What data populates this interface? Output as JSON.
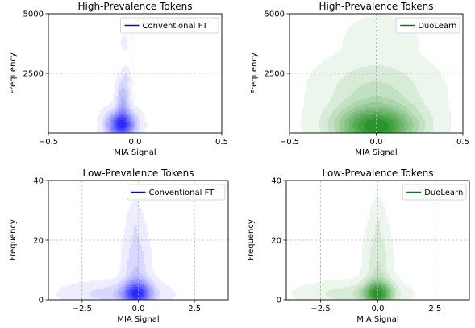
{
  "chart_data": [
    {
      "type": "area",
      "kind": "kde-density",
      "title": "High-Prevalence Tokens",
      "xlabel": "MIA Signal",
      "ylabel": "Frequency",
      "xlim": [
        -0.5,
        0.5
      ],
      "ylim": [
        0,
        5000
      ],
      "xticks": [
        -0.5,
        0.0,
        0.5
      ],
      "xtick_labels": [
        "−0.5",
        "0.0",
        "0.5"
      ],
      "yticks": [
        2500,
        5000
      ],
      "ytick_labels": [
        "2500",
        "5000"
      ],
      "grid": true,
      "legend": "top-right",
      "series": [
        {
          "name": "Conventional FT",
          "color": "#0000ff"
        }
      ],
      "density_blobs": [
        {
          "x": -0.08,
          "y": 350,
          "sx": 0.055,
          "sy": 380,
          "w": 1.0
        },
        {
          "x": -0.07,
          "y": 1400,
          "sx": 0.025,
          "sy": 550,
          "w": 0.35
        },
        {
          "x": -0.05,
          "y": 2350,
          "sx": 0.015,
          "sy": 250,
          "w": 0.12
        },
        {
          "x": -0.06,
          "y": 3800,
          "sx": 0.02,
          "sy": 350,
          "w": 0.05
        }
      ]
    },
    {
      "type": "area",
      "kind": "kde-density",
      "title": "High-Prevalence Tokens",
      "xlabel": "MIA Signal",
      "ylabel": "Frequency",
      "xlim": [
        -0.5,
        0.5
      ],
      "ylim": [
        0,
        5000
      ],
      "xticks": [
        -0.5,
        0.0,
        0.5
      ],
      "xtick_labels": [
        "−0.5",
        "0.0",
        "0.5"
      ],
      "yticks": [
        2500,
        5000
      ],
      "ytick_labels": [
        "2500",
        "5000"
      ],
      "grid": true,
      "legend": "top-right",
      "series": [
        {
          "name": "DuoLearn",
          "color": "#008000"
        }
      ],
      "density_blobs": [
        {
          "x": 0.0,
          "y": 250,
          "sx": 0.16,
          "sy": 600,
          "w": 1.0
        },
        {
          "x": 0.0,
          "y": 1800,
          "sx": 0.2,
          "sy": 900,
          "w": 0.25
        },
        {
          "x": 0.03,
          "y": 4100,
          "sx": 0.12,
          "sy": 500,
          "w": 0.12
        }
      ]
    },
    {
      "type": "area",
      "kind": "kde-density",
      "title": "Low-Prevalence Tokens",
      "xlabel": "MIA Signal",
      "ylabel": "Frequency",
      "xlim": [
        -4.0,
        4.0
      ],
      "ylim": [
        0,
        40
      ],
      "xticks": [
        -2.5,
        0.0,
        2.5
      ],
      "xtick_labels": [
        "−2.5",
        "0.0",
        "2.5"
      ],
      "yticks": [
        0,
        20,
        40
      ],
      "ytick_labels": [
        "0",
        "20",
        "40"
      ],
      "grid": true,
      "legend": "top-right",
      "series": [
        {
          "name": "Conventional FT",
          "color": "#0000ff"
        }
      ],
      "density_blobs": [
        {
          "x": -0.05,
          "y": 2,
          "sx": 0.45,
          "sy": 3,
          "w": 1.0
        },
        {
          "x": -0.1,
          "y": 11,
          "sx": 0.35,
          "sy": 9,
          "w": 0.3
        },
        {
          "x": -1.0,
          "y": 2,
          "sx": 1.4,
          "sy": 2.5,
          "w": 0.25
        },
        {
          "x": -0.15,
          "y": 27,
          "sx": 0.18,
          "sy": 4,
          "w": 0.1
        }
      ]
    },
    {
      "type": "area",
      "kind": "kde-density",
      "title": "Low-Prevalence Tokens",
      "xlabel": "MIA Signal",
      "ylabel": "Frequency",
      "xlim": [
        -4.0,
        4.0
      ],
      "ylim": [
        0,
        40
      ],
      "xticks": [
        -2.5,
        0.0,
        2.5
      ],
      "xtick_labels": [
        "−2.5",
        "0.0",
        "2.5"
      ],
      "yticks": [
        0,
        20,
        40
      ],
      "ytick_labels": [
        "0",
        "20",
        "40"
      ],
      "grid": true,
      "legend": "top-right",
      "series": [
        {
          "name": "DuoLearn",
          "color": "#008000"
        }
      ],
      "density_blobs": [
        {
          "x": 0.0,
          "y": 2,
          "sx": 0.45,
          "sy": 3,
          "w": 1.0
        },
        {
          "x": 0.0,
          "y": 12,
          "sx": 0.35,
          "sy": 9,
          "w": 0.3
        },
        {
          "x": -1.1,
          "y": 2,
          "sx": 1.4,
          "sy": 2.5,
          "w": 0.25
        },
        {
          "x": 0.0,
          "y": 28,
          "sx": 0.18,
          "sy": 4,
          "w": 0.1
        }
      ]
    }
  ]
}
